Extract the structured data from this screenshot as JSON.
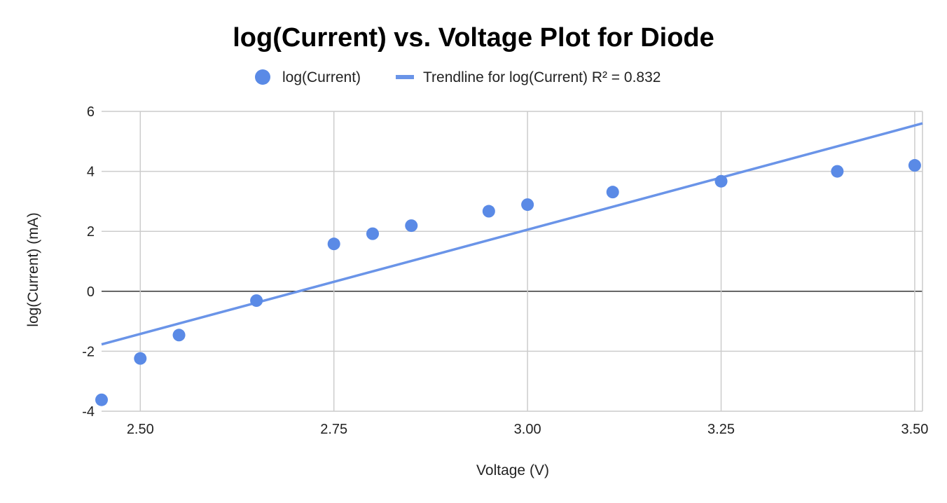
{
  "chart_data": {
    "type": "scatter",
    "title": "log(Current) vs. Voltage Plot for Diode",
    "xlabel": "Voltage (V)",
    "ylabel": "log(Current) (mA)",
    "xlim": [
      2.45,
      3.51
    ],
    "ylim": [
      -4,
      6
    ],
    "x_ticks": [
      2.5,
      2.75,
      3.0,
      3.25,
      3.5
    ],
    "x_tick_labels": [
      "2.50",
      "2.75",
      "3.00",
      "3.25",
      "3.50"
    ],
    "y_ticks": [
      -4,
      -2,
      0,
      2,
      4,
      6
    ],
    "y_tick_labels": [
      "-4",
      "-2",
      "0",
      "2",
      "4",
      "6"
    ],
    "grid": true,
    "legend_position": "top",
    "series": [
      {
        "name": "log(Current)",
        "color": "#5a8ae6",
        "points": [
          {
            "x": 2.45,
            "y": -3.62
          },
          {
            "x": 2.5,
            "y": -2.24
          },
          {
            "x": 2.55,
            "y": -1.46
          },
          {
            "x": 2.65,
            "y": -0.31
          },
          {
            "x": 2.75,
            "y": 1.58
          },
          {
            "x": 2.8,
            "y": 1.92
          },
          {
            "x": 2.85,
            "y": 2.19
          },
          {
            "x": 2.95,
            "y": 2.67
          },
          {
            "x": 3.0,
            "y": 2.89
          },
          {
            "x": 3.11,
            "y": 3.31
          },
          {
            "x": 3.25,
            "y": 3.67
          },
          {
            "x": 3.4,
            "y": 4.0
          },
          {
            "x": 3.5,
            "y": 4.2
          }
        ]
      }
    ],
    "trendline": {
      "name": "Trendline for log(Current) R² = 0.832",
      "color": "#6a94e8",
      "x_start": 2.45,
      "y_start": -1.77,
      "x_end": 3.51,
      "y_end": 5.6
    }
  }
}
